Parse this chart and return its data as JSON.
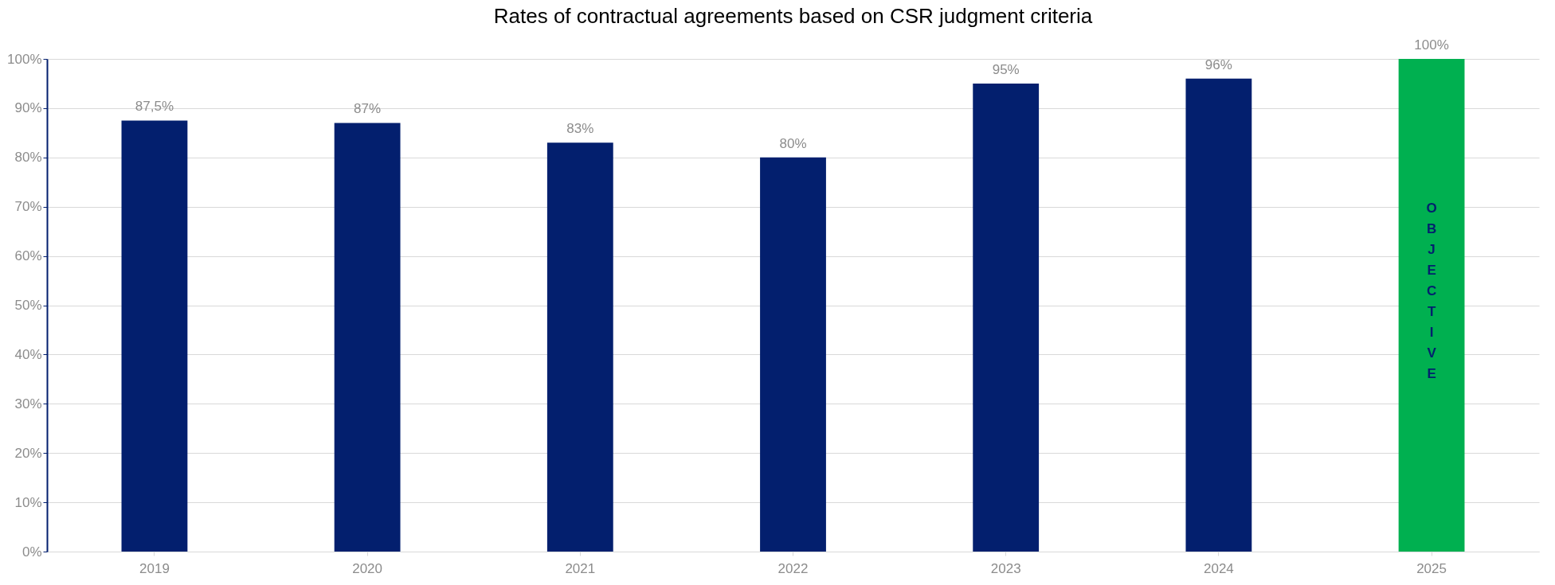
{
  "chart_data": {
    "type": "bar",
    "title": "Rates of contractual agreements based on CSR judgment criteria",
    "categories": [
      "2019",
      "2020",
      "2021",
      "2022",
      "2023",
      "2024",
      "2025"
    ],
    "values": [
      87.5,
      87,
      83,
      80,
      95,
      96,
      100
    ],
    "colors": [
      "#031f6e",
      "#031f6e",
      "#031f6e",
      "#031f6e",
      "#031f6e",
      "#031f6e",
      "#00b050"
    ],
    "value_labels": [
      "87,5%",
      "87%",
      "83%",
      "80%",
      "95%",
      "96%",
      "100%"
    ],
    "ylim": [
      0,
      100
    ],
    "yticks": [
      {
        "value": 0,
        "label": "0%"
      },
      {
        "value": 10,
        "label": "10%"
      },
      {
        "value": 20,
        "label": "20%"
      },
      {
        "value": 30,
        "label": "30%"
      },
      {
        "value": 40,
        "label": "40%"
      },
      {
        "value": 50,
        "label": "50%"
      },
      {
        "value": 60,
        "label": "60%"
      },
      {
        "value": 70,
        "label": "70%"
      },
      {
        "value": 80,
        "label": "80%"
      },
      {
        "value": 90,
        "label": "90%"
      },
      {
        "value": 100,
        "label": "100%"
      }
    ],
    "grid": "y",
    "annotations": [
      "OBJECTIVE"
    ]
  }
}
